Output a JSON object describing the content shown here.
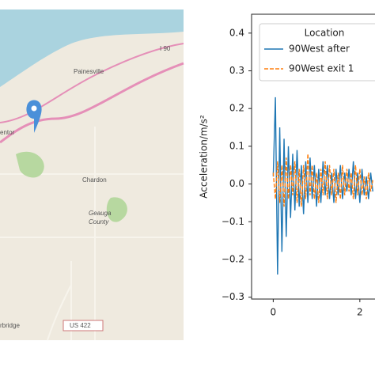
{
  "map": {
    "labels": [
      "Painesville",
      "I 90",
      "entor",
      "Chardon",
      "Geauga",
      "County",
      "US 422",
      "rbridge"
    ]
  },
  "chart_data": {
    "type": "line",
    "y_label": "Acceleration/m/s²",
    "legend_title": "Location",
    "x": [
      0,
      0.05,
      0.1,
      0.15,
      0.2,
      0.25,
      0.3,
      0.35,
      0.4,
      0.45,
      0.5,
      0.55,
      0.6,
      0.65,
      0.7,
      0.75,
      0.8,
      0.85,
      0.9,
      0.95,
      1,
      1.05,
      1.1,
      1.15,
      1.2,
      1.25,
      1.3,
      1.35,
      1.4,
      1.45,
      1.5,
      1.55,
      1.6,
      1.65,
      1.7,
      1.75,
      1.8,
      1.85,
      1.9,
      1.95,
      2,
      2.05,
      2.1,
      2.15,
      2.2,
      2.25,
      2.3
    ],
    "series": [
      {
        "name": "90West after",
        "color": "#1f77b4",
        "dash": false,
        "values": [
          0.02,
          0.23,
          -0.24,
          0.15,
          -0.18,
          0.12,
          -0.14,
          0.1,
          -0.09,
          0.08,
          -0.07,
          0.09,
          -0.06,
          0.05,
          -0.08,
          0.06,
          -0.05,
          0.07,
          -0.04,
          0.05,
          -0.06,
          0.04,
          -0.05,
          0.06,
          -0.03,
          0.05,
          -0.04,
          0.03,
          -0.05,
          0.04,
          -0.03,
          0.05,
          -0.04,
          0.03,
          -0.02,
          0.04,
          -0.03,
          0.06,
          -0.04,
          0.03,
          -0.05,
          0.04,
          -0.03,
          0.02,
          -0.04,
          0.03,
          -0.02
        ]
      },
      {
        "name": "90West exit 1",
        "color": "#ff7f0e",
        "dash": true,
        "values": [
          0.03,
          -0.04,
          0.06,
          -0.05,
          0.05,
          -0.06,
          0.07,
          -0.04,
          0.05,
          -0.03,
          0.06,
          -0.05,
          0.04,
          -0.06,
          0.05,
          -0.04,
          0.08,
          -0.03,
          0.05,
          -0.04,
          0.03,
          -0.05,
          0.04,
          -0.03,
          0.06,
          -0.04,
          0.05,
          -0.03,
          0.04,
          -0.05,
          0.03,
          -0.04,
          0.05,
          -0.03,
          0.04,
          -0.02,
          0.03,
          -0.04,
          0.05,
          -0.03,
          0.04,
          -0.03,
          0.02,
          -0.04,
          0.03,
          -0.02,
          0.01
        ]
      }
    ],
    "xlim": [
      -0.5,
      2.35
    ],
    "xticks": [
      0,
      2
    ],
    "ylim": [
      -0.305,
      0.45
    ],
    "yticks": [
      {
        "value": -0.3,
        "label": "−0.3"
      },
      {
        "value": -0.2,
        "label": "−0.2"
      },
      {
        "value": -0.1,
        "label": "−0.1"
      },
      {
        "value": 0,
        "label": "0.0"
      },
      0.1,
      0.2,
      0.3,
      0.4
    ],
    "legend": "upper right"
  }
}
